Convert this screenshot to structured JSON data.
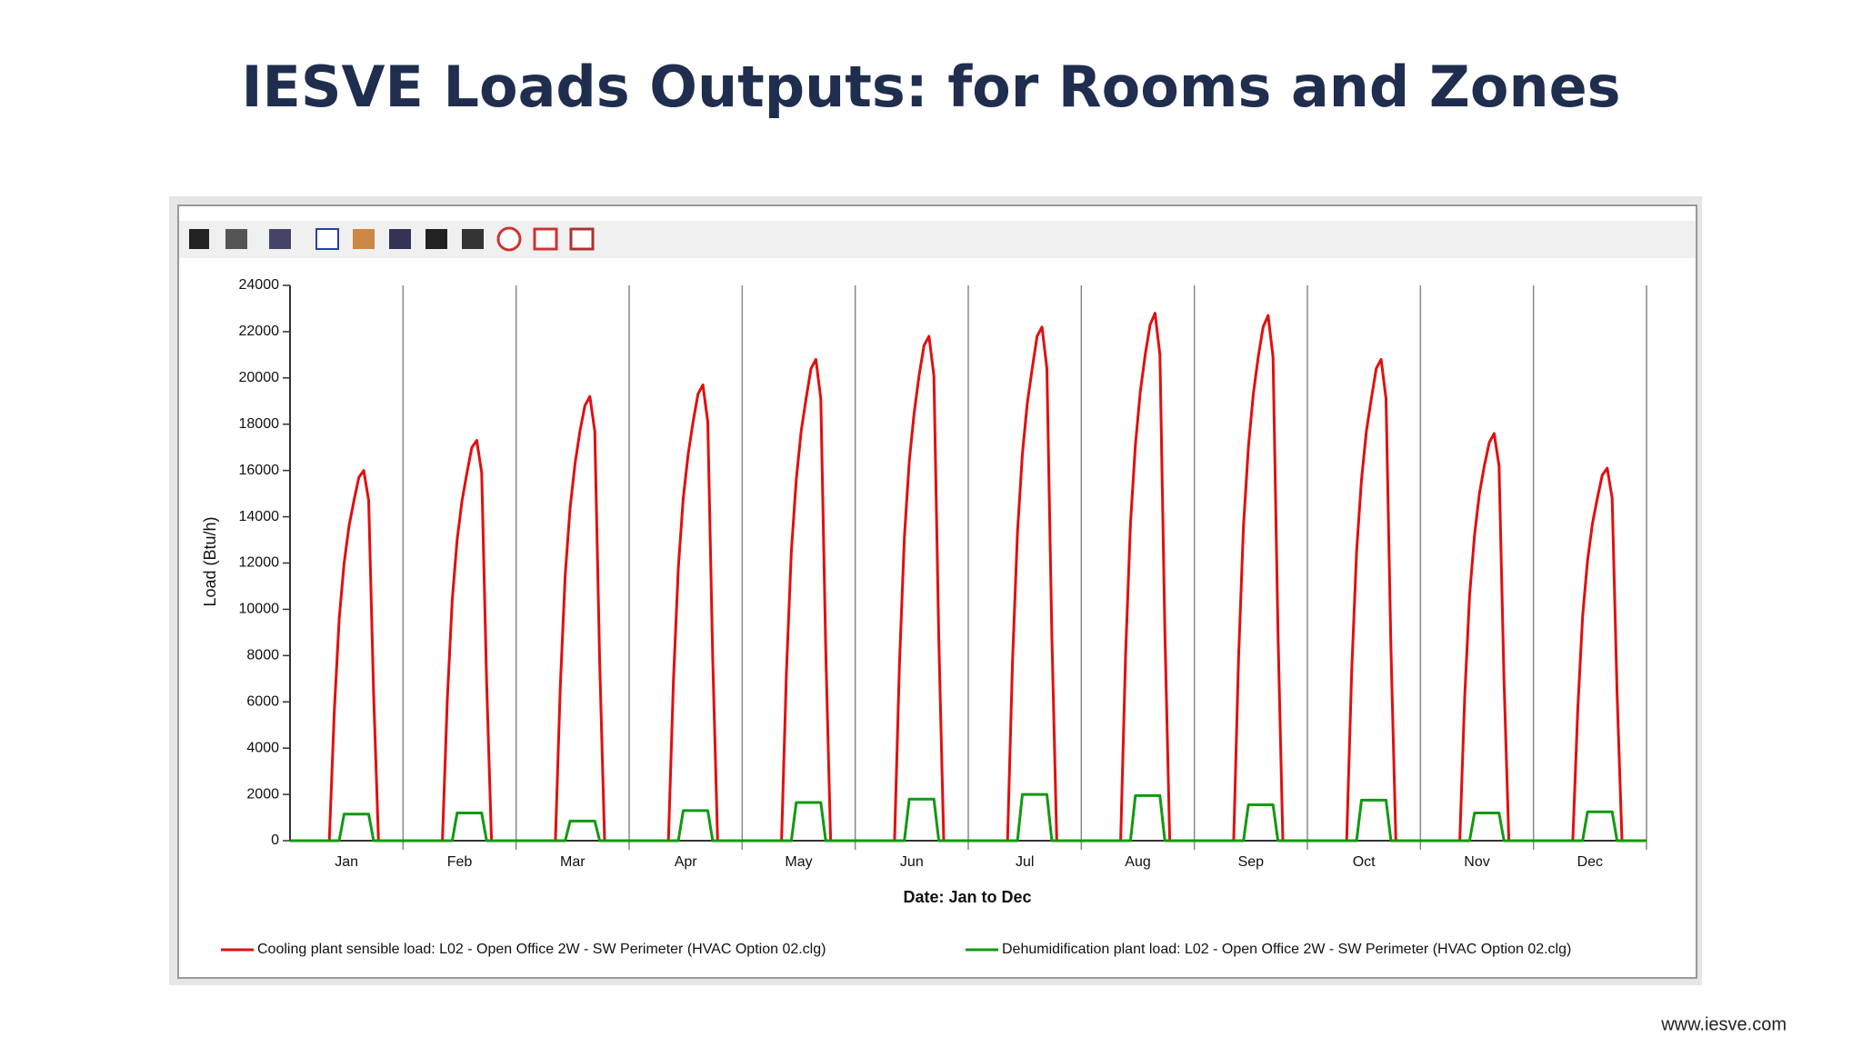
{
  "header": {
    "title": "IESVE Loads Outputs: for Rooms and Zones",
    "website": "www.iesve.com"
  },
  "chart_data": {
    "type": "line",
    "x_label": "Date: Jan to Dec",
    "y_label": "Load (Btu/h)",
    "categories": [
      "Jan",
      "Feb",
      "Mar",
      "Apr",
      "May",
      "Jun",
      "Jul",
      "Aug",
      "Sep",
      "Oct",
      "Nov",
      "Dec"
    ],
    "ylim": [
      0,
      24000
    ],
    "yticks": [
      0,
      2000,
      4000,
      6000,
      8000,
      10000,
      12000,
      14000,
      16000,
      18000,
      20000,
      22000,
      24000
    ],
    "series": [
      {
        "name": "Cooling plant sensible load: L02 - Open Office 2W - SW Perimeter (HVAC Option 02.clg)",
        "color": "#e01010",
        "values": [
          [
            0,
            0,
            0,
            0,
            0,
            0,
            0,
            0,
            0,
            5600,
            9600,
            12000,
            13600,
            14700,
            15700,
            16000,
            14700,
            6400,
            0,
            0,
            0,
            0,
            0,
            0
          ],
          [
            0,
            0,
            0,
            0,
            0,
            0,
            0,
            0,
            0,
            6100,
            10400,
            13000,
            14700,
            15900,
            17000,
            17300,
            15900,
            6900,
            0,
            0,
            0,
            0,
            0,
            0
          ],
          [
            0,
            0,
            0,
            0,
            0,
            0,
            0,
            0,
            0,
            6700,
            11500,
            14400,
            16300,
            17700,
            18800,
            19200,
            17700,
            7700,
            0,
            0,
            0,
            0,
            0,
            0
          ],
          [
            0,
            0,
            0,
            0,
            0,
            0,
            0,
            0,
            0,
            6900,
            11800,
            14800,
            16700,
            18100,
            19300,
            19700,
            18100,
            7900,
            0,
            0,
            0,
            0,
            0,
            0
          ],
          [
            0,
            0,
            0,
            0,
            0,
            0,
            0,
            0,
            0,
            7300,
            12500,
            15600,
            17700,
            19100,
            20400,
            20800,
            19100,
            8300,
            0,
            0,
            0,
            0,
            0,
            0
          ],
          [
            0,
            0,
            0,
            0,
            0,
            0,
            0,
            0,
            0,
            7600,
            13100,
            16400,
            18500,
            20100,
            21400,
            21800,
            20100,
            8700,
            0,
            0,
            0,
            0,
            0,
            0
          ],
          [
            0,
            0,
            0,
            0,
            0,
            0,
            0,
            0,
            0,
            7800,
            13300,
            16700,
            18900,
            20400,
            21800,
            22200,
            20400,
            8900,
            0,
            0,
            0,
            0,
            0,
            0
          ],
          [
            0,
            0,
            0,
            0,
            0,
            0,
            0,
            0,
            0,
            8000,
            13700,
            17100,
            19400,
            21000,
            22300,
            22800,
            21000,
            9100,
            0,
            0,
            0,
            0,
            0,
            0
          ],
          [
            0,
            0,
            0,
            0,
            0,
            0,
            0,
            0,
            0,
            7900,
            13600,
            17000,
            19300,
            20900,
            22200,
            22700,
            20900,
            9100,
            0,
            0,
            0,
            0,
            0,
            0
          ],
          [
            0,
            0,
            0,
            0,
            0,
            0,
            0,
            0,
            0,
            7300,
            12500,
            15600,
            17700,
            19100,
            20400,
            20800,
            19100,
            8300,
            0,
            0,
            0,
            0,
            0,
            0
          ],
          [
            0,
            0,
            0,
            0,
            0,
            0,
            0,
            0,
            0,
            6200,
            10600,
            13200,
            15000,
            16200,
            17200,
            17600,
            16200,
            7000,
            0,
            0,
            0,
            0,
            0,
            0
          ],
          [
            0,
            0,
            0,
            0,
            0,
            0,
            0,
            0,
            0,
            5600,
            9700,
            12100,
            13700,
            14800,
            15800,
            16100,
            14800,
            6400,
            0,
            0,
            0,
            0,
            0,
            0
          ]
        ]
      },
      {
        "name": "Dehumidification plant load: L02 - Open Office 2W - SW Perimeter (HVAC Option 02.clg)",
        "color": "#109a10",
        "values": [
          [
            0,
            0,
            0,
            0,
            0,
            0,
            0,
            0,
            0,
            0,
            0,
            1150,
            1150,
            1150,
            1150,
            1150,
            1150,
            0,
            0,
            0,
            0,
            0,
            0,
            0
          ],
          [
            0,
            0,
            0,
            0,
            0,
            0,
            0,
            0,
            0,
            0,
            0,
            1200,
            1200,
            1200,
            1200,
            1200,
            1200,
            0,
            0,
            0,
            0,
            0,
            0,
            0
          ],
          [
            0,
            0,
            0,
            0,
            0,
            0,
            0,
            0,
            0,
            0,
            0,
            850,
            850,
            850,
            850,
            850,
            850,
            0,
            0,
            0,
            0,
            0,
            0,
            0
          ],
          [
            0,
            0,
            0,
            0,
            0,
            0,
            0,
            0,
            0,
            0,
            0,
            1300,
            1300,
            1300,
            1300,
            1300,
            1300,
            0,
            0,
            0,
            0,
            0,
            0,
            0
          ],
          [
            0,
            0,
            0,
            0,
            0,
            0,
            0,
            0,
            0,
            0,
            0,
            1650,
            1650,
            1650,
            1650,
            1650,
            1650,
            0,
            0,
            0,
            0,
            0,
            0,
            0
          ],
          [
            0,
            0,
            0,
            0,
            0,
            0,
            0,
            0,
            0,
            0,
            0,
            1800,
            1800,
            1800,
            1800,
            1800,
            1800,
            0,
            0,
            0,
            0,
            0,
            0,
            0
          ],
          [
            0,
            0,
            0,
            0,
            0,
            0,
            0,
            0,
            0,
            0,
            0,
            2000,
            2000,
            2000,
            2000,
            2000,
            2000,
            0,
            0,
            0,
            0,
            0,
            0,
            0
          ],
          [
            0,
            0,
            0,
            0,
            0,
            0,
            0,
            0,
            0,
            0,
            0,
            1950,
            1950,
            1950,
            1950,
            1950,
            1950,
            0,
            0,
            0,
            0,
            0,
            0,
            0
          ],
          [
            0,
            0,
            0,
            0,
            0,
            0,
            0,
            0,
            0,
            0,
            0,
            1550,
            1550,
            1550,
            1550,
            1550,
            1550,
            0,
            0,
            0,
            0,
            0,
            0,
            0
          ],
          [
            0,
            0,
            0,
            0,
            0,
            0,
            0,
            0,
            0,
            0,
            0,
            1750,
            1750,
            1750,
            1750,
            1750,
            1750,
            0,
            0,
            0,
            0,
            0,
            0,
            0
          ],
          [
            0,
            0,
            0,
            0,
            0,
            0,
            0,
            0,
            0,
            0,
            0,
            1200,
            1200,
            1200,
            1200,
            1200,
            1200,
            0,
            0,
            0,
            0,
            0,
            0,
            0
          ],
          [
            0,
            0,
            0,
            0,
            0,
            0,
            0,
            0,
            0,
            0,
            0,
            1250,
            1250,
            1250,
            1250,
            1250,
            1250,
            0,
            0,
            0,
            0,
            0,
            0,
            0
          ]
        ]
      }
    ]
  }
}
